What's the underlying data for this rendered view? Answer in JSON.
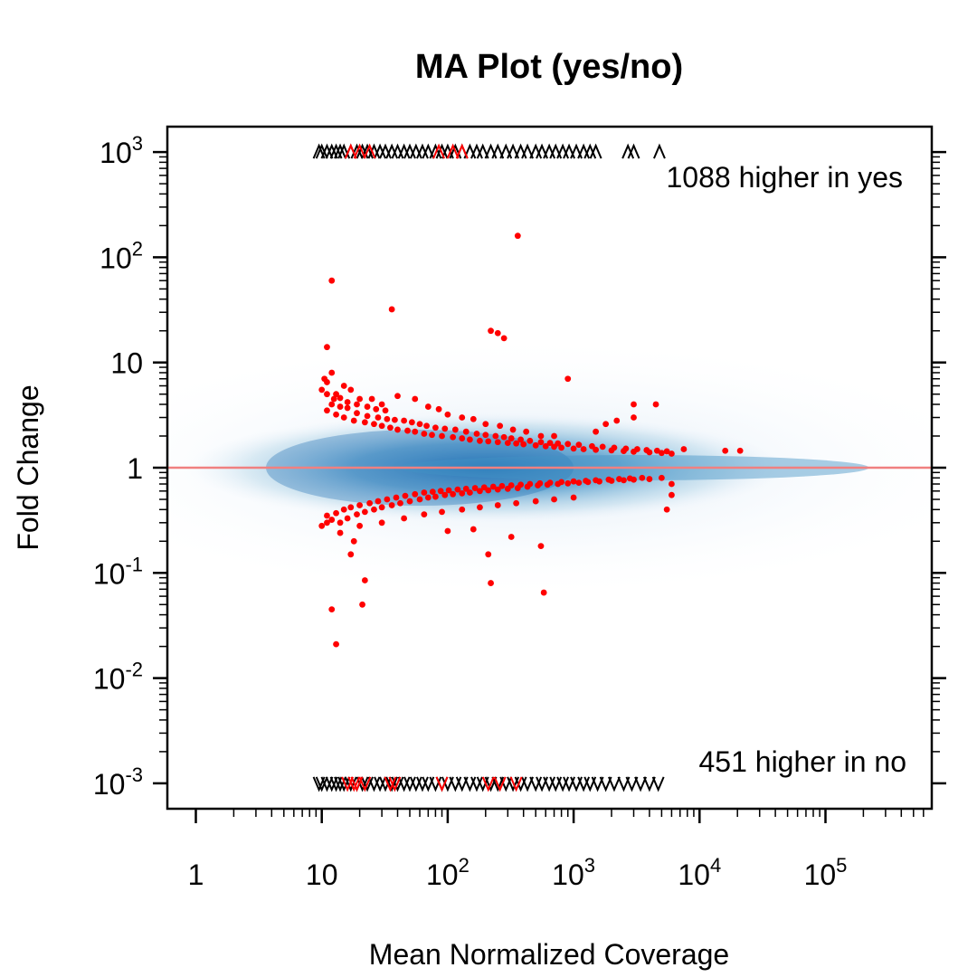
{
  "chart_data": {
    "type": "scatter",
    "title": "MA Plot (yes/no)",
    "xlabel": "Mean Normalized Coverage",
    "ylabel": "Fold Change",
    "xscale": "log",
    "yscale": "log",
    "xlim": [
      0.6,
      700000
    ],
    "ylim": [
      0.00065,
      1500
    ],
    "x_ticks": [
      {
        "value": 1,
        "base": "1",
        "exp": ""
      },
      {
        "value": 10,
        "base": "10",
        "exp": ""
      },
      {
        "value": 100,
        "base": "10",
        "exp": "2"
      },
      {
        "value": 1000,
        "base": "10",
        "exp": "3"
      },
      {
        "value": 10000,
        "base": "10",
        "exp": "4"
      },
      {
        "value": 100000,
        "base": "10",
        "exp": "5"
      }
    ],
    "y_ticks": [
      {
        "value": 0.001,
        "base": "10",
        "exp": "-3"
      },
      {
        "value": 0.01,
        "base": "10",
        "exp": "-2"
      },
      {
        "value": 0.1,
        "base": "10",
        "exp": "-1"
      },
      {
        "value": 1,
        "base": "1",
        "exp": ""
      },
      {
        "value": 10,
        "base": "10",
        "exp": ""
      },
      {
        "value": 100,
        "base": "10",
        "exp": "2"
      },
      {
        "value": 1000,
        "base": "10",
        "exp": "3"
      }
    ],
    "reference_line": {
      "y": 1,
      "color": "#f08080"
    },
    "annotations": {
      "higher_yes": "1088 higher in yes",
      "higher_no": "451 higher in no"
    },
    "colors": {
      "significant": "#ff0000",
      "density": "#2171b5",
      "marker": "#000000"
    },
    "series": [
      {
        "role": "significant-up",
        "points": [
          [
            12,
            60
          ],
          [
            36,
            32
          ],
          [
            220,
            20
          ],
          [
            250,
            19
          ],
          [
            280,
            17
          ],
          [
            360,
            160
          ],
          [
            900,
            7
          ],
          [
            3000,
            4
          ],
          [
            4500,
            4
          ],
          [
            11,
            14
          ],
          [
            10,
            5.5
          ],
          [
            10.5,
            7
          ],
          [
            11,
            6.5
          ],
          [
            12,
            8
          ],
          [
            13,
            5
          ],
          [
            15,
            6
          ],
          [
            17,
            5.5
          ],
          [
            20,
            4.5
          ],
          [
            25,
            4.5
          ],
          [
            30,
            4
          ],
          [
            40,
            4.8
          ],
          [
            55,
            4.5
          ],
          [
            70,
            3.8
          ],
          [
            85,
            3.6
          ],
          [
            100,
            3.2
          ],
          [
            130,
            3
          ],
          [
            160,
            2.9
          ],
          [
            200,
            2.6
          ],
          [
            260,
            2.5
          ],
          [
            330,
            2.3
          ],
          [
            420,
            2.2
          ],
          [
            550,
            2
          ],
          [
            700,
            2
          ],
          [
            1500,
            2.2
          ],
          [
            2200,
            2.8
          ],
          [
            3000,
            3
          ],
          [
            1800,
            2.6
          ],
          [
            7500,
            1.5
          ],
          [
            16000,
            1.45
          ],
          [
            21000,
            1.45
          ],
          [
            11,
            3.5
          ],
          [
            13,
            3.2
          ],
          [
            15,
            3
          ],
          [
            18,
            2.8
          ],
          [
            22,
            2.7
          ],
          [
            26,
            2.6
          ],
          [
            30,
            2.5
          ],
          [
            35,
            2.4
          ],
          [
            40,
            2.3
          ],
          [
            48,
            2.25
          ],
          [
            55,
            2.2
          ],
          [
            65,
            2.1
          ],
          [
            75,
            2.05
          ],
          [
            90,
            2
          ],
          [
            110,
            1.95
          ],
          [
            130,
            1.9
          ],
          [
            150,
            1.85
          ],
          [
            180,
            1.8
          ],
          [
            210,
            1.78
          ],
          [
            250,
            1.75
          ],
          [
            300,
            1.72
          ],
          [
            350,
            1.7
          ],
          [
            400,
            1.67
          ],
          [
            500,
            1.63
          ],
          [
            600,
            1.6
          ],
          [
            700,
            1.58
          ],
          [
            800,
            1.55
          ],
          [
            1000,
            1.52
          ],
          [
            1200,
            1.5
          ],
          [
            1500,
            1.48
          ],
          [
            2000,
            1.46
          ],
          [
            2500,
            1.44
          ],
          [
            3000,
            1.42
          ],
          [
            4000,
            1.4
          ],
          [
            5000,
            1.38
          ],
          [
            6000,
            1.36
          ],
          [
            12,
            4
          ],
          [
            14,
            3.8
          ],
          [
            16,
            3.7
          ],
          [
            19,
            3.3
          ],
          [
            23,
            3.1
          ],
          [
            28,
            3
          ],
          [
            33,
            2.9
          ],
          [
            38,
            2.85
          ],
          [
            45,
            2.8
          ],
          [
            52,
            2.7
          ],
          [
            60,
            2.6
          ],
          [
            68,
            2.5
          ],
          [
            80,
            2.4
          ],
          [
            95,
            2.35
          ],
          [
            115,
            2.3
          ],
          [
            140,
            2.2
          ],
          [
            170,
            2.1
          ],
          [
            200,
            2.05
          ],
          [
            240,
            2
          ],
          [
            280,
            1.95
          ],
          [
            320,
            1.9
          ],
          [
            380,
            1.85
          ],
          [
            450,
            1.8
          ],
          [
            550,
            1.75
          ],
          [
            650,
            1.72
          ],
          [
            750,
            1.7
          ],
          [
            900,
            1.68
          ],
          [
            1100,
            1.65
          ],
          [
            1400,
            1.6
          ],
          [
            1700,
            1.58
          ],
          [
            2100,
            1.55
          ],
          [
            2600,
            1.52
          ],
          [
            3200,
            1.5
          ],
          [
            3800,
            1.47
          ],
          [
            4600,
            1.45
          ],
          [
            5500,
            1.43
          ],
          [
            11,
            5
          ],
          [
            12.5,
            4.5
          ],
          [
            14,
            4.6
          ],
          [
            16,
            4.2
          ],
          [
            19,
            4
          ],
          [
            23,
            3.8
          ],
          [
            27,
            3.6
          ],
          [
            32,
            3.5
          ]
        ]
      },
      {
        "role": "significant-down",
        "points": [
          [
            12,
            0.045
          ],
          [
            13,
            0.021
          ],
          [
            21,
            0.05
          ],
          [
            22,
            0.085
          ],
          [
            220,
            0.08
          ],
          [
            210,
            0.15
          ],
          [
            580,
            0.065
          ],
          [
            550,
            0.18
          ],
          [
            320,
            0.22
          ],
          [
            100,
            0.25
          ],
          [
            160,
            0.26
          ],
          [
            17,
            0.15
          ],
          [
            18,
            0.2
          ],
          [
            10,
            0.28
          ],
          [
            11,
            0.3
          ],
          [
            12,
            0.32
          ],
          [
            14,
            0.3
          ],
          [
            16,
            0.33
          ],
          [
            19,
            0.36
          ],
          [
            22,
            0.38
          ],
          [
            26,
            0.4
          ],
          [
            30,
            0.42
          ],
          [
            36,
            0.44
          ],
          [
            42,
            0.46
          ],
          [
            50,
            0.48
          ],
          [
            60,
            0.5
          ],
          [
            70,
            0.52
          ],
          [
            80,
            0.53
          ],
          [
            95,
            0.55
          ],
          [
            110,
            0.56
          ],
          [
            130,
            0.57
          ],
          [
            150,
            0.58
          ],
          [
            180,
            0.6
          ],
          [
            210,
            0.61
          ],
          [
            250,
            0.62
          ],
          [
            300,
            0.63
          ],
          [
            360,
            0.64
          ],
          [
            430,
            0.66
          ],
          [
            520,
            0.68
          ],
          [
            620,
            0.69
          ],
          [
            750,
            0.7
          ],
          [
            900,
            0.71
          ],
          [
            1100,
            0.72
          ],
          [
            1300,
            0.73
          ],
          [
            1600,
            0.74
          ],
          [
            2000,
            0.75
          ],
          [
            2500,
            0.76
          ],
          [
            3000,
            0.77
          ],
          [
            4000,
            0.78
          ],
          [
            5000,
            0.8
          ],
          [
            6000,
            0.55
          ],
          [
            5500,
            0.4
          ],
          [
            6000,
            0.7
          ],
          [
            11,
            0.35
          ],
          [
            13,
            0.37
          ],
          [
            15,
            0.4
          ],
          [
            17,
            0.42
          ],
          [
            20,
            0.44
          ],
          [
            24,
            0.46
          ],
          [
            28,
            0.48
          ],
          [
            33,
            0.5
          ],
          [
            39,
            0.52
          ],
          [
            46,
            0.54
          ],
          [
            55,
            0.56
          ],
          [
            65,
            0.58
          ],
          [
            76,
            0.59
          ],
          [
            88,
            0.6
          ],
          [
            102,
            0.61
          ],
          [
            120,
            0.62
          ],
          [
            140,
            0.63
          ],
          [
            165,
            0.64
          ],
          [
            195,
            0.65
          ],
          [
            230,
            0.66
          ],
          [
            270,
            0.67
          ],
          [
            320,
            0.68
          ],
          [
            380,
            0.69
          ],
          [
            450,
            0.7
          ],
          [
            540,
            0.71
          ],
          [
            650,
            0.72
          ],
          [
            800,
            0.73
          ],
          [
            1000,
            0.74
          ],
          [
            1250,
            0.75
          ],
          [
            1500,
            0.76
          ],
          [
            1900,
            0.77
          ],
          [
            2300,
            0.78
          ],
          [
            2800,
            0.79
          ],
          [
            3500,
            0.8
          ],
          [
            14,
            0.24
          ],
          [
            20,
            0.28
          ],
          [
            30,
            0.3
          ],
          [
            45,
            0.33
          ],
          [
            65,
            0.36
          ],
          [
            90,
            0.38
          ],
          [
            130,
            0.4
          ],
          [
            180,
            0.42
          ],
          [
            250,
            0.44
          ],
          [
            350,
            0.46
          ],
          [
            500,
            0.48
          ],
          [
            700,
            0.5
          ],
          [
            1000,
            0.52
          ]
        ]
      }
    ],
    "top_markers": {
      "symbol": "^",
      "y": 1000,
      "black_x": [
        9.5,
        10,
        11,
        12,
        13,
        14,
        15,
        17,
        19,
        21,
        23,
        26,
        29,
        32,
        36,
        40,
        45,
        50,
        56,
        63,
        70,
        80,
        90,
        100,
        115,
        130,
        150,
        170,
        190,
        220,
        250,
        290,
        330,
        380,
        430,
        500,
        560,
        640,
        720,
        820,
        920,
        1050,
        1200,
        1350,
        1500,
        2700,
        3000,
        4800
      ],
      "red_x": [
        17,
        20,
        24,
        85,
        110,
        130
      ]
    },
    "bottom_markers": {
      "symbol": "v",
      "y": 0.001,
      "black_x": [
        9.5,
        10,
        11,
        12,
        13,
        14,
        15,
        17,
        19,
        21,
        23,
        26,
        29,
        32,
        36,
        40,
        45,
        50,
        56,
        63,
        70,
        80,
        90,
        100,
        115,
        130,
        150,
        170,
        190,
        220,
        250,
        290,
        330,
        380,
        430,
        500,
        560,
        640,
        720,
        820,
        920,
        1050,
        1200,
        1350,
        1550,
        1800,
        2100,
        2500,
        2900,
        3400,
        4000,
        4700
      ],
      "red_x": [
        16,
        18,
        19,
        22,
        35,
        38,
        90,
        210,
        260,
        350
      ]
    }
  }
}
